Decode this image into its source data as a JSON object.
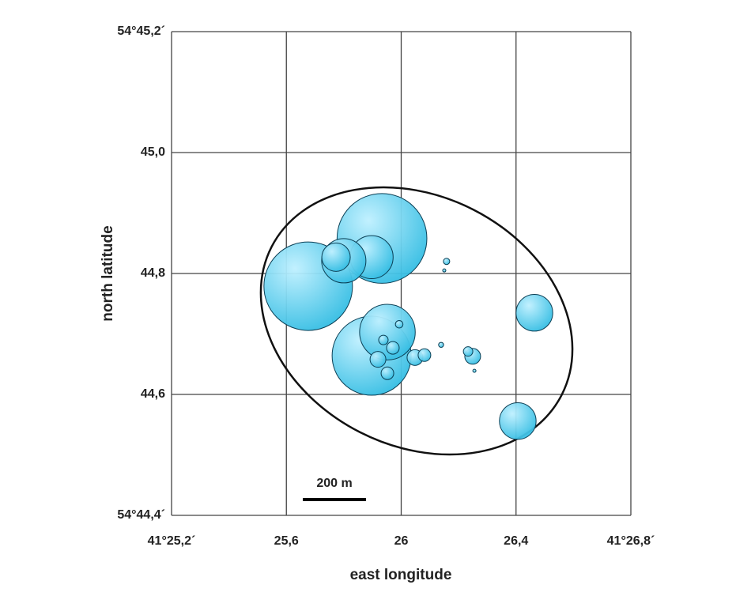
{
  "chart_data": {
    "type": "bubble",
    "x_label": "east longitude",
    "y_label": "north latitude",
    "xlim": [
      25.2,
      26.8
    ],
    "ylim": [
      44.4,
      45.2
    ],
    "xticks": [
      {
        "value": 25.2,
        "label": "41°25,2´"
      },
      {
        "value": 25.6,
        "label": "25,6"
      },
      26,
      {
        "value": 26.4,
        "label": "26,4"
      },
      {
        "value": 26.8,
        "label": "41°26,8´"
      }
    ],
    "yticks": [
      {
        "value": 44.4,
        "label": "54°44,4´"
      },
      {
        "value": 44.6,
        "label": "44,6"
      },
      {
        "value": 44.8,
        "label": "44,8"
      },
      {
        "value": 45.0,
        "label": "45,0"
      },
      {
        "value": 45.2,
        "label": "54°45,2´"
      }
    ],
    "grid": true,
    "scale_bar": {
      "label": "200 m",
      "length": 200
    },
    "series": [
      {
        "color": "#33bde3",
        "x": [
          25.933,
          25.676,
          25.897,
          25.952,
          25.897,
          25.8,
          25.773,
          26.464,
          26.406,
          26.249,
          26.233,
          26.158,
          26.15,
          26.139,
          26.255,
          26.048,
          26.081,
          25.919,
          25.952,
          25.971,
          25.993,
          25.938
        ],
        "y": [
          44.858,
          44.779,
          44.664,
          44.703,
          44.827,
          44.821,
          44.827,
          44.735,
          44.556,
          44.663,
          44.671,
          44.82,
          44.805,
          44.682,
          44.639,
          44.661,
          44.665,
          44.658,
          44.635,
          44.677,
          44.716,
          44.69
        ],
        "sizes": [
          142,
          140,
          125,
          88,
          68,
          70,
          45,
          58,
          58,
          25,
          15,
          10,
          5,
          8,
          5,
          25,
          20,
          25,
          20,
          20,
          12,
          15
        ]
      }
    ]
  }
}
